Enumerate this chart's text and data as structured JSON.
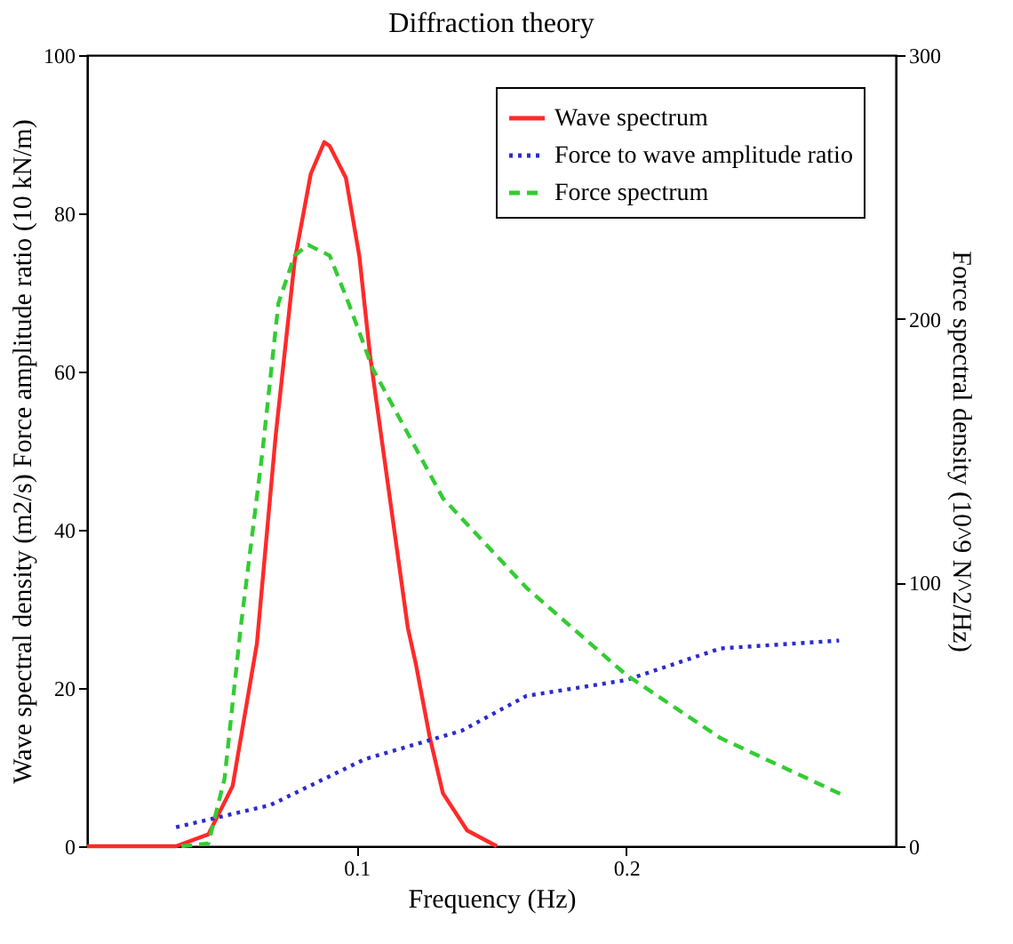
{
  "chart_data": {
    "type": "line",
    "title": "Diffraction theory",
    "xlabel": "Frequency (Hz)",
    "ylabel": "Wave spectral density (m2/s) Force amplitude ratio (10 kN/m)",
    "y2label": "Force spectral density (10^9 N^2/Hz)",
    "xlim": [
      0,
      0.3
    ],
    "xticks": [
      0.1,
      0.2
    ],
    "ylim": [
      0,
      100
    ],
    "yticks": [
      0,
      20,
      40,
      60,
      80,
      100
    ],
    "y2lim": [
      0,
      300
    ],
    "y2ticks": [
      0,
      100,
      200,
      300
    ],
    "grid": false,
    "legend": "top right",
    "marker": "none",
    "series": [
      {
        "name": "Wave spectrum",
        "color": "#ff2a2a",
        "line_style": "solid",
        "x": [
          0.0,
          0.033,
          0.045,
          0.054,
          0.063,
          0.07,
          0.077,
          0.083,
          0.088,
          0.09,
          0.096,
          0.101,
          0.105,
          0.119,
          0.122,
          0.127,
          0.132,
          0.141,
          0.152
        ],
        "values": [
          0,
          0,
          1.5,
          7.6,
          25.6,
          52,
          74,
          85,
          89,
          88.5,
          84.5,
          74.6,
          62,
          27.6,
          23,
          14,
          6.7,
          2,
          0
        ]
      },
      {
        "name": "Force to wave amplitude ratio",
        "color": "#2b2bd0",
        "line_style": "dotted",
        "x": [
          0.033,
          0.068,
          0.103,
          0.139,
          0.163,
          0.2,
          0.235,
          0.279
        ],
        "values": [
          2.4,
          5.2,
          11,
          14.6,
          19,
          21,
          25,
          26
        ]
      },
      {
        "name": "Force spectrum",
        "color": "#33cc33",
        "line_style": "dashed",
        "axis": "y2",
        "x": [
          0.035,
          0.045,
          0.051,
          0.057,
          0.065,
          0.071,
          0.077,
          0.082,
          0.09,
          0.097,
          0.106,
          0.132,
          0.163,
          0.2,
          0.235,
          0.28
        ],
        "values": [
          0,
          1,
          25.6,
          83,
          149,
          206,
          224,
          228,
          224,
          206,
          181,
          132,
          98,
          65,
          41,
          19.6
        ]
      }
    ]
  }
}
